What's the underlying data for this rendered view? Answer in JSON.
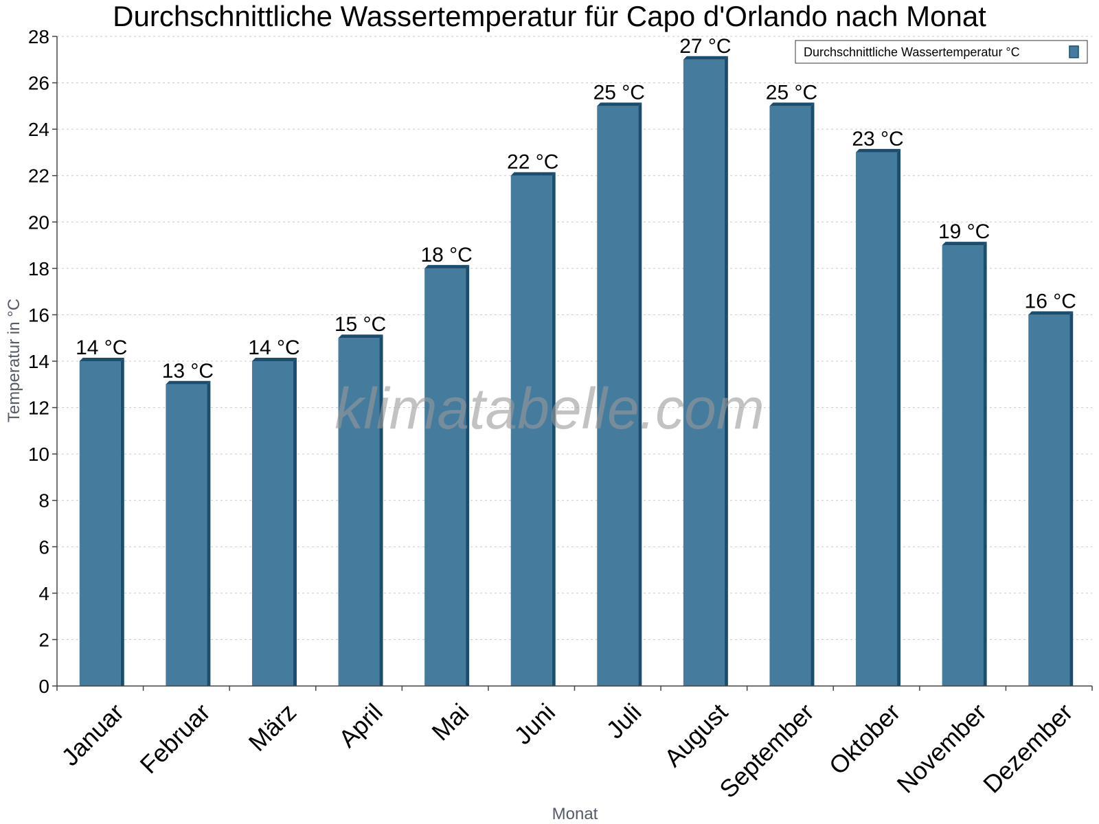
{
  "chart_data": {
    "type": "bar",
    "title": "Durchschnittliche Wassertemperatur für Capo d'Orlando nach Monat",
    "xlabel": "Monat",
    "ylabel": "Temperatur in °C",
    "ylim": [
      0,
      28
    ],
    "yticks": [
      0,
      2,
      4,
      6,
      8,
      10,
      12,
      14,
      16,
      18,
      20,
      22,
      24,
      26,
      28
    ],
    "grid": true,
    "legend_position": "top-right",
    "categories": [
      "Januar",
      "Februar",
      "März",
      "April",
      "Mai",
      "Juni",
      "Juli",
      "August",
      "September",
      "Oktober",
      "November",
      "Dezember"
    ],
    "series": [
      {
        "name": "Durchschnittliche Wassertemperatur °C",
        "color": "#457b9d",
        "values": [
          14,
          13,
          14,
          15,
          18,
          22,
          25,
          27,
          25,
          23,
          19,
          16
        ],
        "data_labels": [
          "14 °C",
          "13 °C",
          "14 °C",
          "15 °C",
          "18 °C",
          "22 °C",
          "25 °C",
          "27 °C",
          "25 °C",
          "23 °C",
          "19 °C",
          "16 °C"
        ]
      }
    ],
    "watermark": "klimatabelle.com"
  }
}
